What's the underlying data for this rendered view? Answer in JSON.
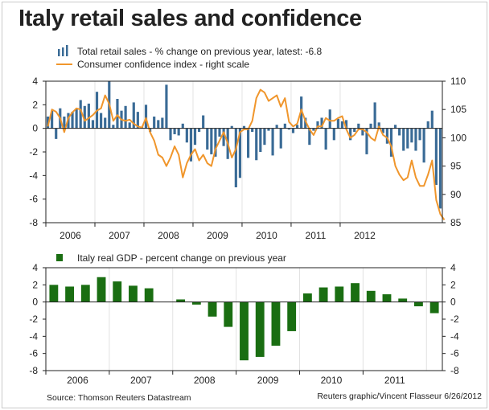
{
  "title": "Italy retail sales and confidence",
  "source": "Source: Thomson Reuters Datastream",
  "credit": "Reuters graphic/Vincent Flasseur 6/26/2012",
  "colors": {
    "retail_bar": "#3a6b96",
    "confidence_line": "#f0962c",
    "gdp_bar": "#1a6e12",
    "axis": "#222222",
    "grid": "#e2e2e2"
  },
  "chart_data": [
    {
      "type": "bar",
      "secondary_type": "line",
      "x_tick_labels": [
        "2006",
        "2007",
        "2008",
        "2009",
        "2010",
        "2011",
        "2012"
      ],
      "x_range": [
        "2006-01",
        "2012-05"
      ],
      "ylim": [
        -8,
        4
      ],
      "y_ticks": [
        4,
        2,
        0,
        -2,
        -4,
        -6,
        -8
      ],
      "y2lim": [
        85,
        110
      ],
      "y2_ticks": [
        110,
        105,
        100,
        95,
        90,
        85
      ],
      "grid": "vertical at year boundaries",
      "legend_position": "top-left",
      "series": [
        {
          "name": "Total retail sales - % change on previous year, latest: -6.8",
          "type": "bar",
          "axis": "left",
          "start": "2006-01",
          "frequency": "monthly",
          "values": [
            1.0,
            1.5,
            -0.9,
            1.7,
            1.0,
            1.3,
            1.4,
            1.7,
            2.4,
            1.9,
            2.1,
            0.7,
            3.1,
            1.3,
            0.9,
            4.0,
            0.3,
            2.5,
            1.5,
            1.9,
            0.5,
            2.2,
            1.4,
            0.1,
            2.0,
            -0.3,
            1.0,
            0.7,
            0.9,
            3.7,
            -1.0,
            -0.5,
            -0.6,
            0.4,
            -1.2,
            -2.8,
            -1.4,
            -0.3,
            1.1,
            -1.8,
            -2.2,
            -2.4,
            -0.7,
            -1.5,
            -2.6,
            0.2,
            -5.0,
            -4.2,
            0.2,
            -2.5,
            -0.3,
            -2.7,
            -2.0,
            -1.4,
            -0.2,
            -2.3,
            0.3,
            -1.7,
            0.4,
            -0.1,
            -0.4,
            0.3,
            2.7,
            0.9,
            -1.4,
            -0.2,
            0.6,
            0.9,
            -1.8,
            1.6,
            -1.0,
            0.8,
            0.6,
            0.7,
            -1.0,
            -0.3,
            0.4,
            -0.6,
            -2.2,
            0.4,
            2.2,
            0.5,
            -0.4,
            -1.3,
            -2.4,
            0.3,
            -0.6,
            -1.9,
            -1.7,
            -1.2,
            -1.9,
            -1.0,
            -2.9,
            0.6,
            1.5,
            -4.8,
            -6.8
          ]
        },
        {
          "name": "Consumer confidence index - right scale",
          "type": "line",
          "axis": "right",
          "start": "2006-01",
          "frequency": "monthly",
          "values": [
            102,
            105,
            104.6,
            103.5,
            101,
            103.5,
            104.5,
            105.2,
            105,
            103,
            103.5,
            104,
            104.8,
            105.2,
            107.5,
            106,
            103,
            104,
            103.2,
            103,
            103.2,
            102.5,
            102,
            101.8,
            103.5,
            101,
            99.5,
            97,
            96.5,
            95,
            96.5,
            98.5,
            97,
            93,
            95.5,
            97,
            98,
            96,
            97,
            95.5,
            95,
            98,
            99.5,
            101,
            99,
            96.5,
            98,
            101,
            101.5,
            101.5,
            103,
            107,
            108.5,
            108,
            106.5,
            107,
            107.5,
            105.5,
            107,
            102.8,
            102,
            102.5,
            105,
            103,
            101.5,
            100.5,
            102,
            102,
            103.5,
            103,
            103,
            103.5,
            103.8,
            101.5,
            100,
            100.5,
            101.5,
            101.5,
            101,
            100,
            99.5,
            102,
            100.5,
            100,
            98.5,
            95,
            93.5,
            92.5,
            93,
            96,
            93,
            91.5,
            91.5,
            93.5,
            96,
            89,
            86.5,
            85.5
          ]
        }
      ]
    },
    {
      "type": "bar",
      "x_tick_labels": [
        "2006",
        "2007",
        "2008",
        "2009",
        "2010",
        "2011"
      ],
      "x_range": [
        "2006-Q1",
        "2012-Q2"
      ],
      "ylim": [
        -8,
        4
      ],
      "y_ticks": [
        4,
        2,
        0,
        -2,
        -4,
        -6,
        -8
      ],
      "legend_position": "top-left",
      "series": [
        {
          "name": "Italy real GDP - percent change on previous year",
          "start": "2006-Q1",
          "frequency": "quarterly",
          "values": [
            2.0,
            1.8,
            2.0,
            2.9,
            2.4,
            1.9,
            1.6,
            null,
            0.3,
            -0.3,
            -1.7,
            -2.9,
            -6.8,
            -6.4,
            -5.1,
            -3.4,
            1.0,
            1.7,
            1.8,
            2.2,
            1.3,
            0.9,
            0.4,
            -0.5,
            -1.3
          ]
        }
      ]
    }
  ]
}
